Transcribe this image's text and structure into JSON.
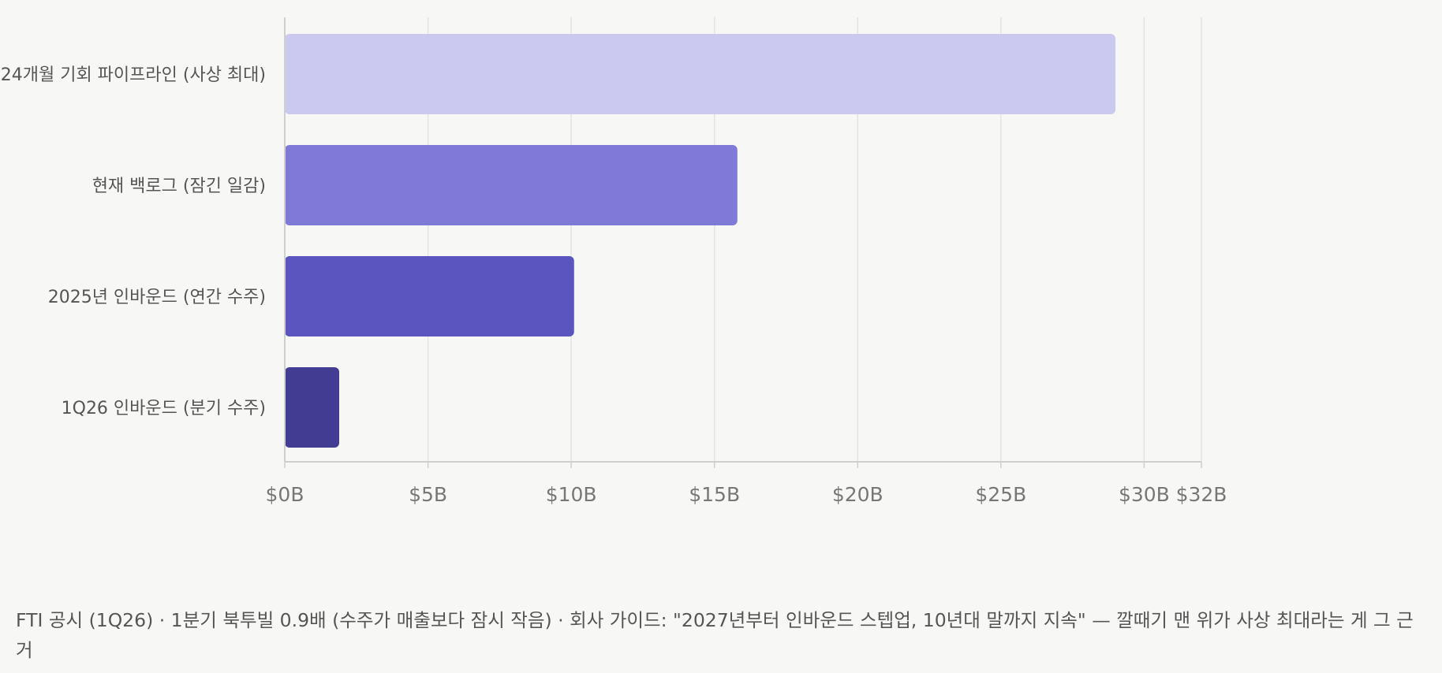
{
  "chart_data": {
    "type": "bar",
    "orientation": "horizontal",
    "categories": [
      "24개월 기회 파이프라인 (사상 최대)",
      "현재 백로그 (잠긴 일감)",
      "2025년 인바운드 (연간 수주)",
      "1Q26 인바운드 (분기 수주)"
    ],
    "values": [
      29,
      15.8,
      10.1,
      1.9
    ],
    "bar_colors": [
      "#cbc9f0",
      "#7f79d8",
      "#5b55bf",
      "#423d93"
    ],
    "xlim": [
      0,
      32
    ],
    "x_ticks": [
      0,
      5,
      10,
      15,
      20,
      25,
      30,
      32
    ],
    "x_tick_labels": [
      "$0B",
      "$5B",
      "$10B",
      "$15B",
      "$20B",
      "$25B",
      "$30B",
      "$32B"
    ],
    "grid": true,
    "title": "",
    "xlabel": "",
    "ylabel": ""
  },
  "caption": "FTI 공시 (1Q26) · 1분기 북투빌 0.9배 (수주가 매출보다 잠시 작음) · 회사 가이드: \"2027년부터 인바운드 스텝업, 10년대 말까지 지속\" — 깔때기 맨 위가 사상 최대라는 게 그 근거",
  "colors": {
    "background": "#f7f7f5",
    "grid": "#e3e3e0",
    "axis": "#cfcfcc"
  }
}
